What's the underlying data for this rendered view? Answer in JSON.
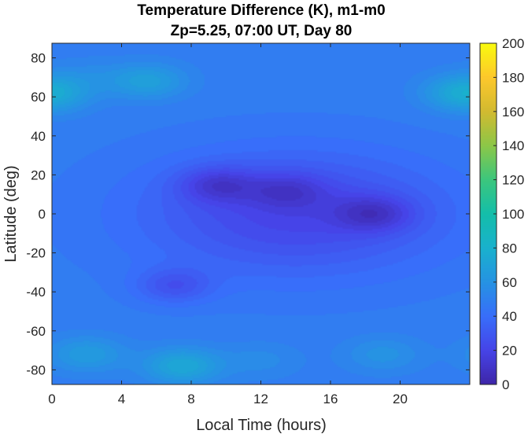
{
  "chart_data": {
    "type": "heatmap",
    "title_line1": "Temperature Difference (K), m1-m0",
    "title_line2": "Zp=5.25, 07:00 UT, Day 80",
    "xlabel": "Local Time (hours)",
    "ylabel": "Latitude (deg)",
    "xlim": [
      0,
      24
    ],
    "ylim": [
      -87.5,
      87.5
    ],
    "x_ticks": [
      0,
      4,
      8,
      12,
      16,
      20
    ],
    "x_tick_labels": [
      "0",
      "4",
      "8",
      "12",
      "16",
      "20"
    ],
    "y_ticks": [
      80,
      60,
      40,
      20,
      0,
      -20,
      -40,
      -60,
      -80
    ],
    "y_tick_labels": [
      "80",
      "60",
      "40",
      "20",
      "0",
      "-20",
      "-40",
      "-60",
      "-80"
    ],
    "colorbar": {
      "colormap": "parula",
      "range": [
        0,
        200
      ],
      "ticks": [
        200,
        180,
        160,
        140,
        120,
        100,
        80,
        60,
        40,
        20,
        0
      ],
      "tick_labels": [
        "200",
        "180",
        "160",
        "140",
        "120",
        "100",
        "80",
        "60",
        "40",
        "20",
        "0"
      ]
    },
    "field_description_features": [
      {
        "lt": 9.5,
        "lat": 15,
        "value": 10
      },
      {
        "lt": 18.5,
        "lat": 0,
        "value": 10
      },
      {
        "lt": 13.5,
        "lat": 12,
        "value": 20
      },
      {
        "lt": 7.0,
        "lat": -37,
        "value": 14
      },
      {
        "lt": 5.5,
        "lat": 68,
        "value": 85
      },
      {
        "lt": 2.0,
        "lat": 70,
        "value": 60
      },
      {
        "lt": 23.5,
        "lat": 63,
        "value": 80
      },
      {
        "lt": 0.0,
        "lat": 60,
        "value": 72
      },
      {
        "lt": 7.5,
        "lat": -78,
        "value": 95
      },
      {
        "lt": 2.0,
        "lat": -72,
        "value": 80
      },
      {
        "lt": 19.0,
        "lat": -72,
        "value": 70
      },
      {
        "lt": 12.0,
        "lat": -75,
        "value": 62
      }
    ],
    "background_value": 48
  }
}
